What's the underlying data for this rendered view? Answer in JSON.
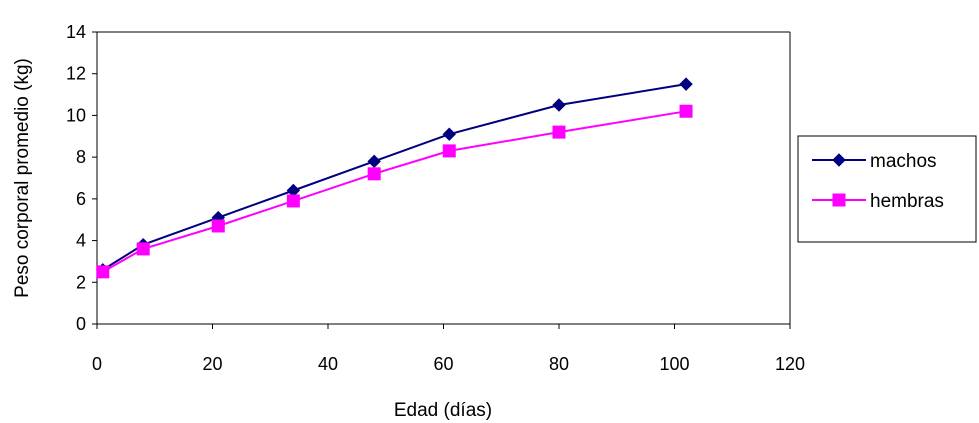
{
  "chart_data": {
    "type": "line",
    "xlabel": "Edad (días)",
    "ylabel": "Peso corporal promedio (kg)",
    "xlim": [
      0,
      120
    ],
    "ylim": [
      0,
      14
    ],
    "xticks": [
      0,
      20,
      40,
      60,
      80,
      100,
      120
    ],
    "yticks": [
      0,
      2,
      4,
      6,
      8,
      10,
      12,
      14
    ],
    "grid": false,
    "legend_position": "right",
    "series": [
      {
        "name": "machos",
        "color": "#000080",
        "marker": "diamond",
        "x": [
          1,
          8,
          21,
          34,
          48,
          61,
          80,
          102
        ],
        "y": [
          2.6,
          3.8,
          5.1,
          6.4,
          7.8,
          9.1,
          10.5,
          11.5
        ]
      },
      {
        "name": "hembras",
        "color": "#ff00ff",
        "marker": "square",
        "x": [
          1,
          8,
          21,
          34,
          48,
          61,
          80,
          102
        ],
        "y": [
          2.5,
          3.6,
          4.7,
          5.9,
          7.2,
          8.3,
          9.2,
          10.2
        ]
      }
    ]
  }
}
